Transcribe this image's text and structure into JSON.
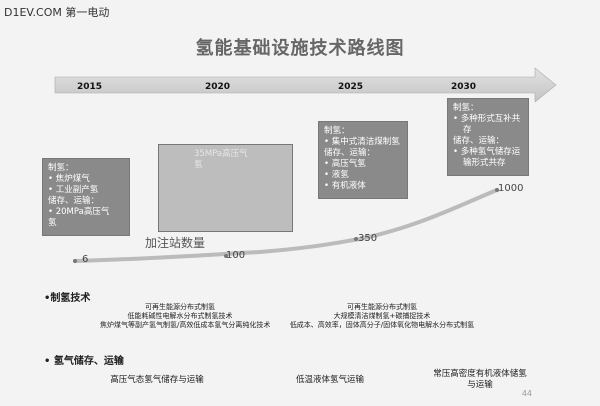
{
  "watermark": "D1EV.COM 第一电动",
  "title": "氢能基础设施技术路线图",
  "timeline": {
    "years": [
      "2015",
      "2020",
      "2025",
      "2030"
    ]
  },
  "boxes": {
    "b2015": [
      "制氢：",
      "• 焦炉煤气",
      "• 工业副产氢",
      "储存、运输：",
      "• 20MPa高压气",
      "氢"
    ],
    "b2020": [
      "",
      "",
      "",
      "",
      "",
      "35MPa高压气",
      "氢"
    ],
    "b2025": [
      "制氢：",
      "• 集中式清洁煤制氢",
      "储存、运输：",
      "• 高压气氢",
      "• 液氢",
      "• 有机液体"
    ],
    "b2030": [
      "制氢：",
      "• 多种形式互补共",
      "存",
      "储存、运输：",
      "• 多种氢气储存运",
      "输形式共存"
    ]
  },
  "stations": {
    "caption": "加注站数量",
    "values": [
      "6",
      "100",
      "350",
      "1000"
    ]
  },
  "sections": {
    "production": {
      "heading": "•制氢技术",
      "col1": [
        "可再生能源分布式制氢",
        "低能耗碱性电解水分布式制氢技术",
        "焦炉煤气等副产氢气制氢/高效低成本氢气分离纯化技术"
      ],
      "col2": [
        "可再生能源分布式制氢",
        "大规模清洁煤制氢+碳捕捉技术",
        "低成本、高效率，固体高分子/固体氧化物电解水分布式制氢"
      ]
    },
    "storage": {
      "heading": "• 氢气储存、运输",
      "items": [
        "高压气态氢气储存与运输",
        "低温液体氢气运输",
        "常压高密度有机液体储氢",
        "与运输"
      ]
    }
  },
  "page_number": "44"
}
